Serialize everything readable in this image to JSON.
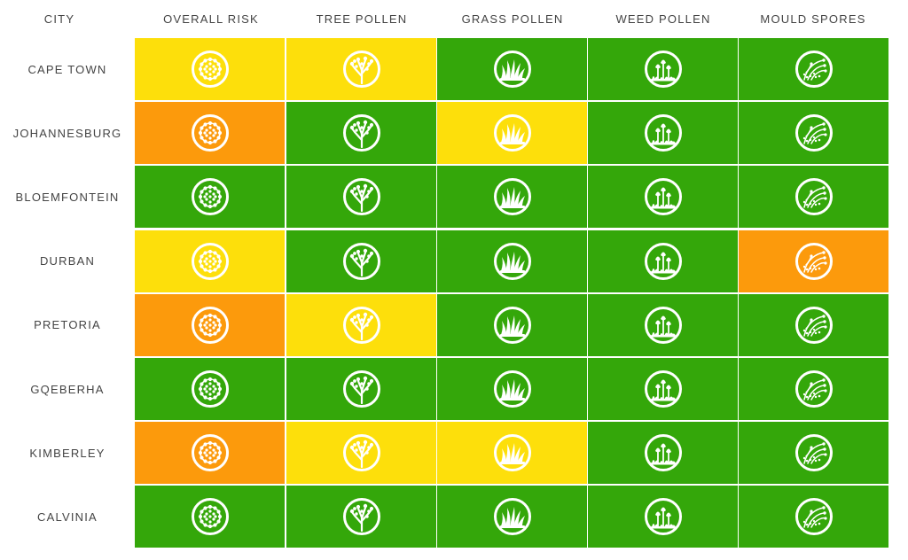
{
  "headers": [
    "CITY",
    "OVERALL RISK",
    "TREE POLLEN",
    "GRASS POLLEN",
    "WEED POLLEN",
    "MOULD SPORES"
  ],
  "colors": {
    "green": "#34A70A",
    "yellow": "#FDDF0B",
    "orange": "#FC9A0C"
  },
  "icons": [
    "pollen-grain-icon",
    "tree-icon",
    "grass-icon",
    "weed-icon",
    "mould-spores-icon"
  ],
  "rows": [
    {
      "city": "CAPE TOWN",
      "levels": [
        "yellow",
        "yellow",
        "green",
        "green",
        "green"
      ]
    },
    {
      "city": "JOHANNESBURG",
      "levels": [
        "orange",
        "green",
        "yellow",
        "green",
        "green"
      ]
    },
    {
      "city": "BLOEMFONTEIN",
      "levels": [
        "green",
        "green",
        "green",
        "green",
        "green"
      ]
    },
    {
      "city": "DURBAN",
      "levels": [
        "yellow",
        "green",
        "green",
        "green",
        "orange"
      ]
    },
    {
      "city": "PRETORIA",
      "levels": [
        "orange",
        "yellow",
        "green",
        "green",
        "green"
      ]
    },
    {
      "city": "GQEBERHA",
      "levels": [
        "green",
        "green",
        "green",
        "green",
        "green"
      ]
    },
    {
      "city": "KIMBERLEY",
      "levels": [
        "orange",
        "yellow",
        "yellow",
        "green",
        "green"
      ]
    },
    {
      "city": "CALVINIA",
      "levels": [
        "green",
        "green",
        "green",
        "green",
        "green"
      ]
    }
  ]
}
